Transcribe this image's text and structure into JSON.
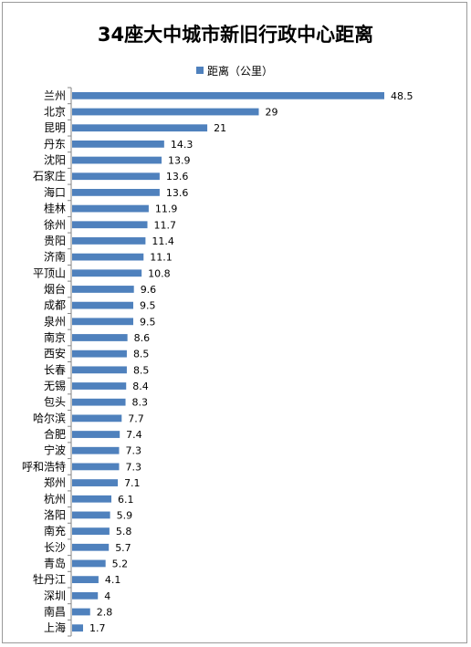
{
  "chart_data": {
    "type": "bar",
    "orientation": "horizontal",
    "title": "34座大中城市新旧行政中心距离",
    "legend": {
      "label": "距离（公里）",
      "position": "top"
    },
    "series": [
      {
        "name": "距离（公里）",
        "color": "#4f81bd"
      }
    ],
    "categories": [
      "兰州",
      "北京",
      "昆明",
      "丹东",
      "沈阳",
      "石家庄",
      "海口",
      "桂林",
      "徐州",
      "贵阳",
      "济南",
      "平顶山",
      "烟台",
      "成都",
      "泉州",
      "南京",
      "西安",
      "长春",
      "无锡",
      "包头",
      "哈尔滨",
      "合肥",
      "宁波",
      "呼和浩特",
      "郑州",
      "杭州",
      "洛阳",
      "南充",
      "长沙",
      "青岛",
      "牡丹江",
      "深圳",
      "南昌",
      "上海"
    ],
    "values": [
      48.5,
      29,
      21,
      14.3,
      13.9,
      13.6,
      13.6,
      11.9,
      11.7,
      11.4,
      11.1,
      10.8,
      9.6,
      9.5,
      9.5,
      8.6,
      8.5,
      8.5,
      8.4,
      8.3,
      7.7,
      7.4,
      7.3,
      7.3,
      7.1,
      6.1,
      5.9,
      5.8,
      5.7,
      5.2,
      4.1,
      4,
      2.8,
      1.7
    ],
    "value_labels": [
      "48.5",
      "29",
      "21",
      "14.3",
      "13.9",
      "13.6",
      "13.6",
      "11.9",
      "11.7",
      "11.4",
      "11.1",
      "10.8",
      "9.6",
      "9.5",
      "9.5",
      "8.6",
      "8.5",
      "8.5",
      "8.4",
      "8.3",
      "7.7",
      "7.4",
      "7.3",
      "7.3",
      "7.1",
      "6.1",
      "5.9",
      "5.8",
      "5.7",
      "5.2",
      "4.1",
      "4",
      "2.8",
      "1.7"
    ],
    "xlim": [
      0,
      50
    ],
    "grid": false
  }
}
